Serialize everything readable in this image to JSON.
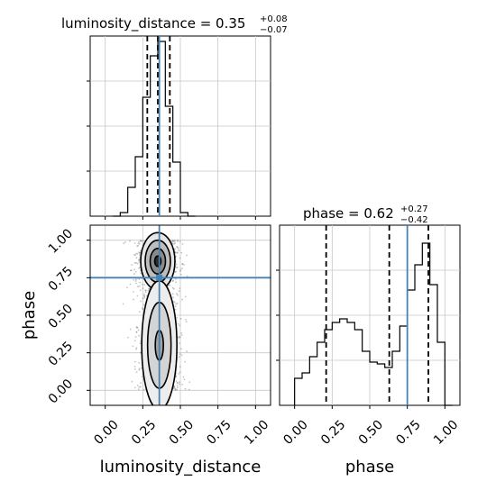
{
  "chart_data": [
    {
      "type": "step-histogram",
      "panel": "luminosity_distance marginal",
      "title": "luminosity_distance = 0.35",
      "title_sup": "+0.08",
      "title_sub": "−0.07",
      "xlim": [
        -0.1,
        1.1
      ],
      "xticks": [
        0.0,
        0.25,
        0.5,
        0.75,
        1.0
      ],
      "bins": [
        {
          "x0": 0.05,
          "x1": 0.1,
          "y": 0.0
        },
        {
          "x0": 0.1,
          "x1": 0.15,
          "y": 0.02
        },
        {
          "x0": 0.15,
          "x1": 0.2,
          "y": 0.16
        },
        {
          "x0": 0.2,
          "x1": 0.25,
          "y": 0.33
        },
        {
          "x0": 0.25,
          "x1": 0.3,
          "y": 0.66
        },
        {
          "x0": 0.3,
          "x1": 0.35,
          "y": 0.89
        },
        {
          "x0": 0.35,
          "x1": 0.4,
          "y": 0.97
        },
        {
          "x0": 0.4,
          "x1": 0.45,
          "y": 0.61
        },
        {
          "x0": 0.45,
          "x1": 0.5,
          "y": 0.3
        },
        {
          "x0": 0.5,
          "x1": 0.55,
          "y": 0.02
        },
        {
          "x0": 0.55,
          "x1": 0.6,
          "y": 0.0
        }
      ],
      "quantiles": [
        0.28,
        0.35,
        0.43
      ],
      "truth": 0.36,
      "ylim": [
        0,
        1.0
      ]
    },
    {
      "type": "step-histogram",
      "panel": "phase marginal",
      "title": "phase = 0.62",
      "title_sup": "+0.27",
      "title_sub": "−0.42",
      "xlabel": "phase",
      "xlim": [
        -0.1,
        1.1
      ],
      "xticks": [
        0.0,
        0.25,
        0.5,
        0.75,
        1.0
      ],
      "xtick_labels": [
        "0.00",
        "0.25",
        "0.50",
        "0.75",
        "1.00"
      ],
      "bins": [
        {
          "x0": 0.0,
          "x1": 0.05,
          "y": 0.15
        },
        {
          "x0": 0.05,
          "x1": 0.1,
          "y": 0.18
        },
        {
          "x0": 0.1,
          "x1": 0.15,
          "y": 0.27
        },
        {
          "x0": 0.15,
          "x1": 0.2,
          "y": 0.35
        },
        {
          "x0": 0.2,
          "x1": 0.25,
          "y": 0.42
        },
        {
          "x0": 0.25,
          "x1": 0.3,
          "y": 0.46
        },
        {
          "x0": 0.3,
          "x1": 0.35,
          "y": 0.48
        },
        {
          "x0": 0.35,
          "x1": 0.4,
          "y": 0.46
        },
        {
          "x0": 0.4,
          "x1": 0.45,
          "y": 0.42
        },
        {
          "x0": 0.45,
          "x1": 0.5,
          "y": 0.3
        },
        {
          "x0": 0.5,
          "x1": 0.55,
          "y": 0.24
        },
        {
          "x0": 0.55,
          "x1": 0.6,
          "y": 0.23
        },
        {
          "x0": 0.6,
          "x1": 0.65,
          "y": 0.21
        },
        {
          "x0": 0.65,
          "x1": 0.7,
          "y": 0.3
        },
        {
          "x0": 0.7,
          "x1": 0.75,
          "y": 0.44
        },
        {
          "x0": 0.75,
          "x1": 0.8,
          "y": 0.64
        },
        {
          "x0": 0.8,
          "x1": 0.85,
          "y": 0.78
        },
        {
          "x0": 0.85,
          "x1": 0.9,
          "y": 0.9
        },
        {
          "x0": 0.9,
          "x1": 0.95,
          "y": 0.67
        },
        {
          "x0": 0.95,
          "x1": 1.0,
          "y": 0.35
        },
        {
          "x0": 1.0,
          "x1": 1.05,
          "y": 0.0
        }
      ],
      "quantiles": [
        0.21,
        0.63,
        0.89
      ],
      "truth": 0.75,
      "ylim": [
        0,
        1.0
      ]
    },
    {
      "type": "2d-density-contour",
      "panel": "luminosity_distance vs phase",
      "xlabel": "luminosity_distance",
      "ylabel": "phase",
      "xlim": [
        -0.1,
        1.1
      ],
      "ylim": [
        -0.1,
        1.1
      ],
      "xticks": [
        0.0,
        0.25,
        0.5,
        0.75,
        1.0
      ],
      "xtick_labels": [
        "0.00",
        "0.25",
        "0.50",
        "0.75",
        "1.00"
      ],
      "yticks": [
        0.0,
        0.25,
        0.5,
        0.75,
        1.0
      ],
      "ytick_labels": [
        "0.00",
        "0.25",
        "0.50",
        "0.75",
        "1.00"
      ],
      "truth": {
        "x": 0.36,
        "y": 0.75
      },
      "modes": [
        {
          "x": 0.35,
          "y": 0.86,
          "sx": 0.06,
          "sy": 0.1,
          "weight": 1.0
        },
        {
          "x": 0.36,
          "y": 0.3,
          "sx": 0.06,
          "sy": 0.22,
          "weight": 0.75
        }
      ]
    }
  ],
  "style": {
    "truth_color": "#4682b4",
    "hist_color": "#000000",
    "grid_color": "#c8c8c8",
    "scatter_color": "#555555"
  }
}
